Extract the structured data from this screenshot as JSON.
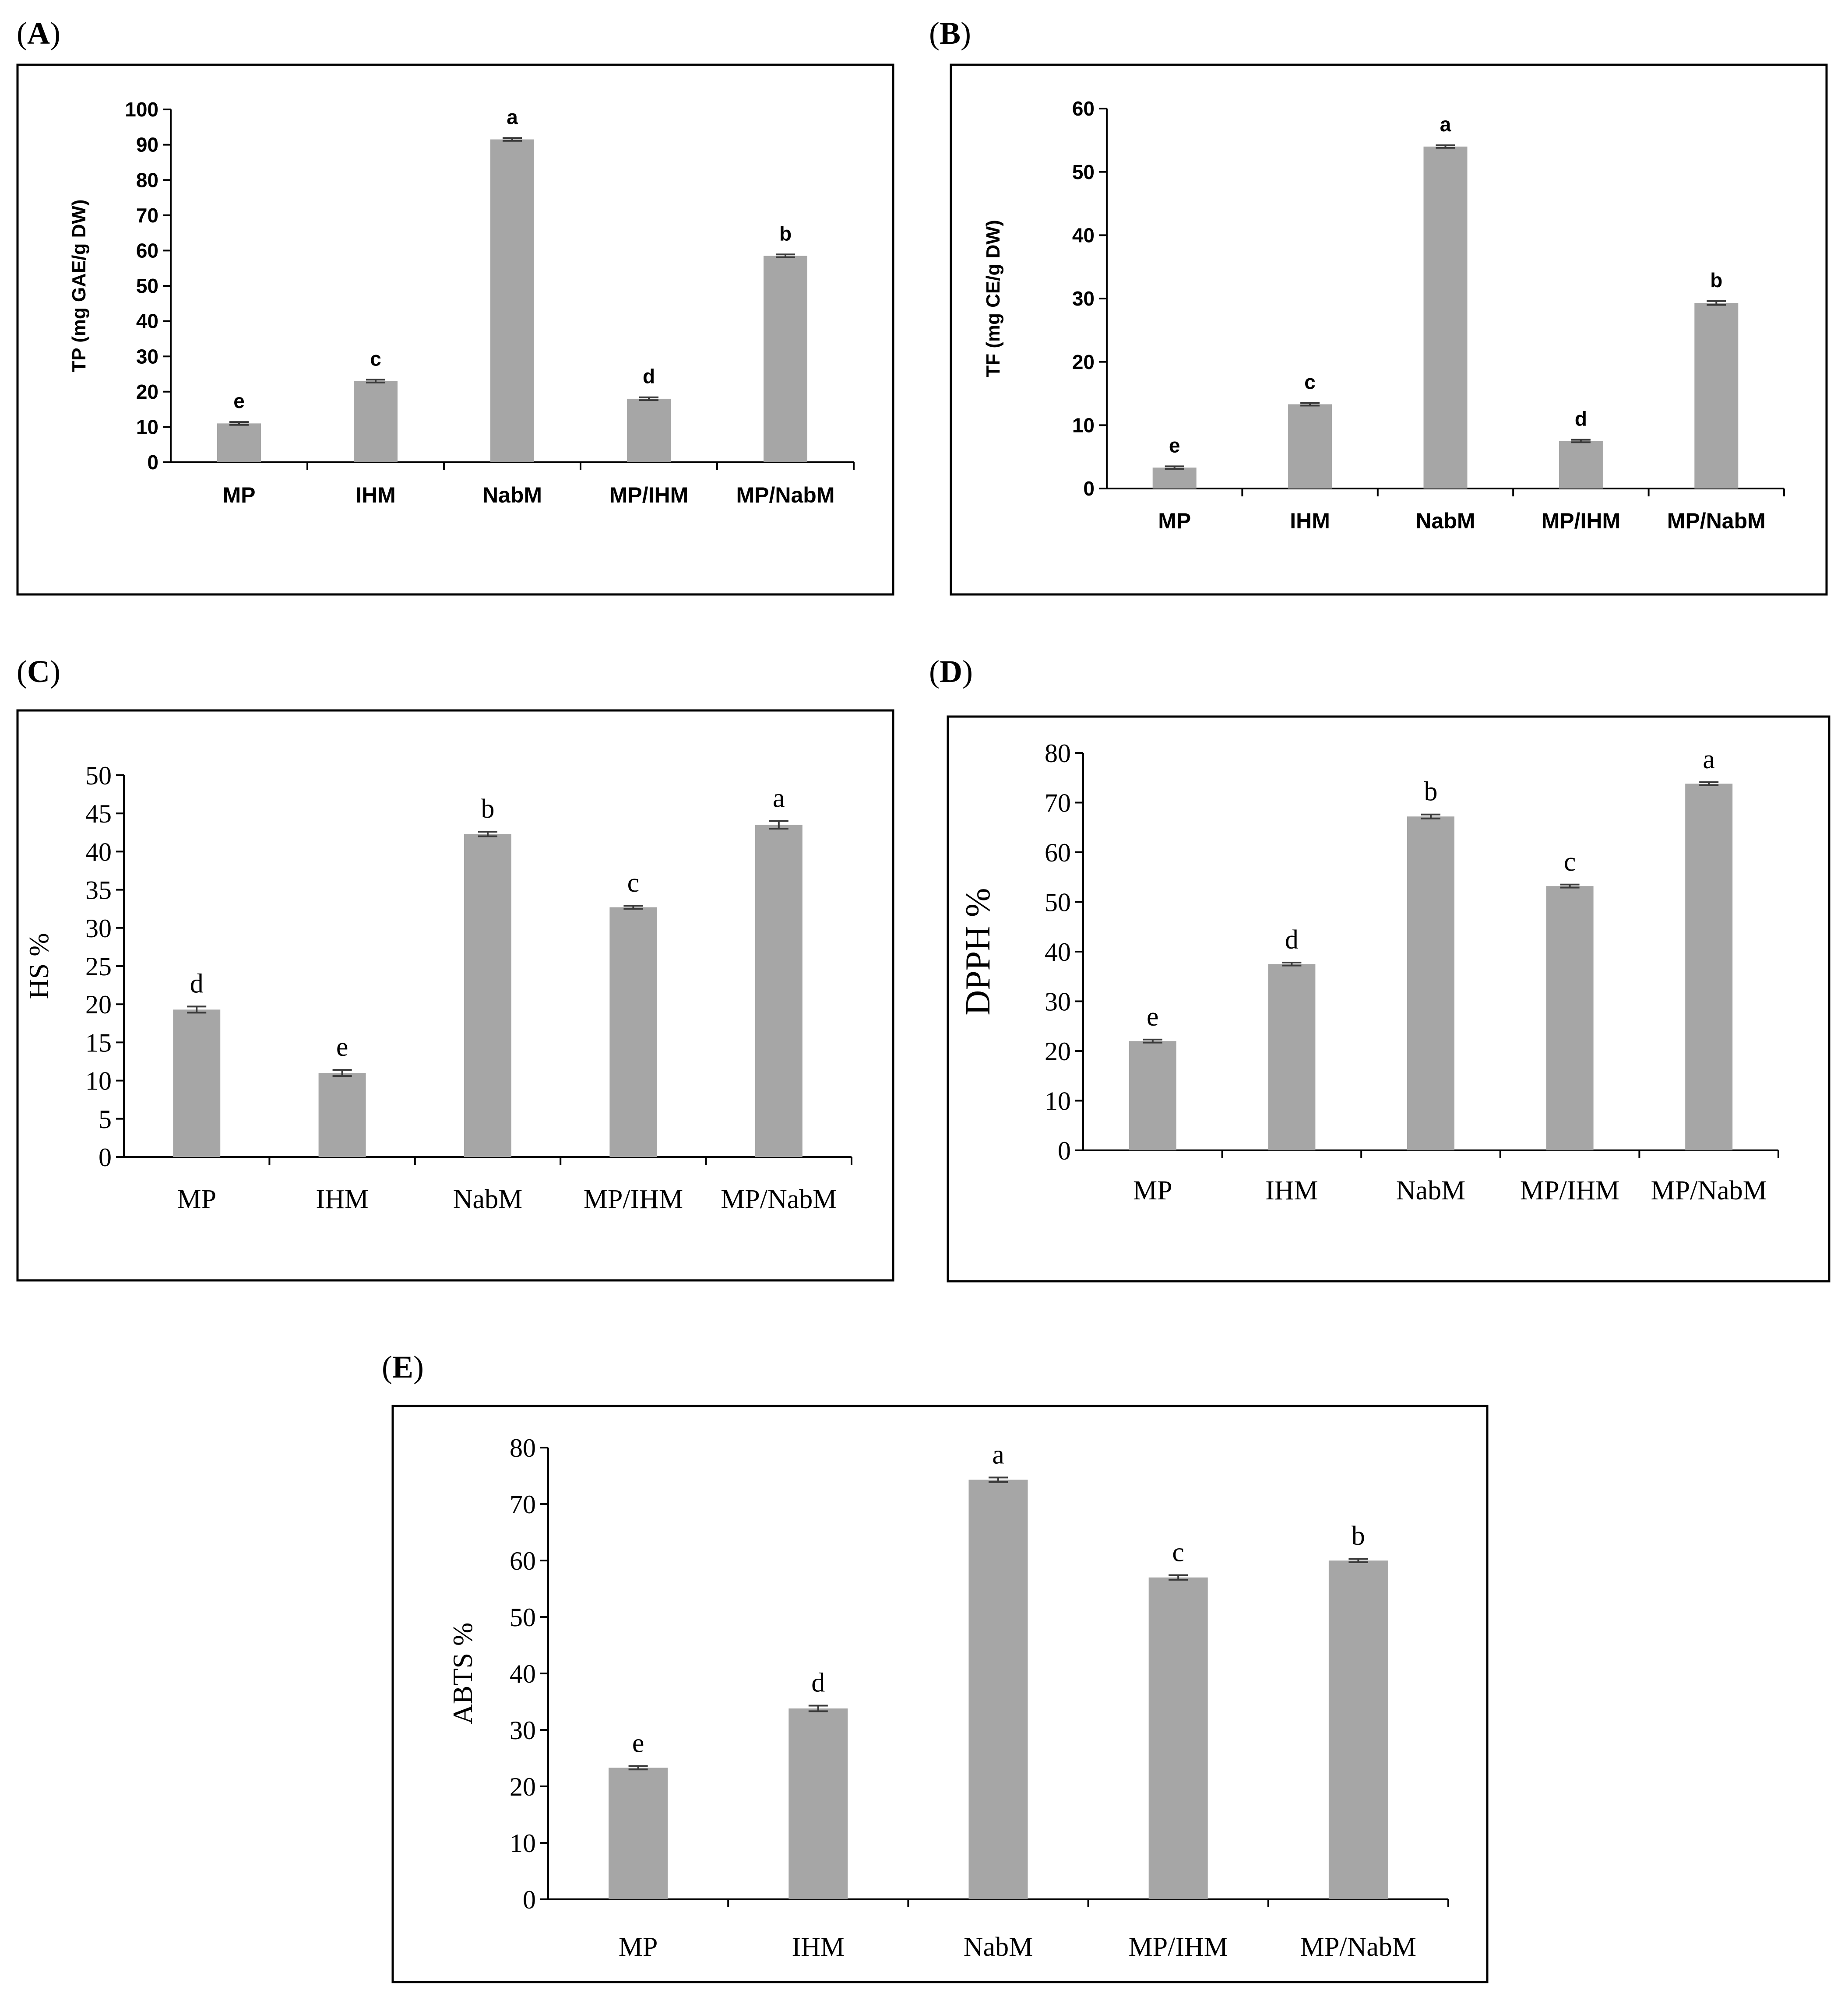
{
  "chart_data": [
    {
      "panel": "A",
      "panel_label": "(A)",
      "type": "bar",
      "ylabel": "TP (mg GAE/g DW)",
      "categories": [
        "MP",
        "IHM",
        "NabM",
        "MP/IHM",
        "MP/NabM"
      ],
      "values": [
        11,
        23,
        91.5,
        18,
        58.5
      ],
      "errors": [
        0.4,
        0.4,
        0.4,
        0.4,
        0.4
      ],
      "letters": [
        "e",
        "c",
        "a",
        "d",
        "b"
      ],
      "ylim": [
        0,
        100
      ],
      "yticks": [
        0,
        10,
        20,
        30,
        40,
        50,
        60,
        70,
        80,
        90,
        100
      ]
    },
    {
      "panel": "B",
      "panel_label": "(B)",
      "type": "bar",
      "ylabel": "TF (mg CE/g DW)",
      "categories": [
        "MP",
        "IHM",
        "NabM",
        "MP/IHM",
        "MP/NabM"
      ],
      "values": [
        3.3,
        13.3,
        54,
        7.5,
        29.3
      ],
      "errors": [
        0.2,
        0.2,
        0.2,
        0.2,
        0.3
      ],
      "letters": [
        "e",
        "c",
        "a",
        "d",
        "b"
      ],
      "ylim": [
        0,
        60
      ],
      "yticks": [
        0,
        10,
        20,
        30,
        40,
        50,
        60
      ]
    },
    {
      "panel": "C",
      "panel_label": "(C)",
      "type": "bar",
      "ylabel": "HS %",
      "categories": [
        "MP",
        "IHM",
        "NabM",
        "MP/IHM",
        "MP/NabM"
      ],
      "values": [
        19.3,
        11,
        42.3,
        32.7,
        43.5
      ],
      "errors": [
        0.4,
        0.4,
        0.3,
        0.2,
        0.5
      ],
      "letters": [
        "d",
        "e",
        "b",
        "c",
        "a"
      ],
      "ylim": [
        0,
        50
      ],
      "yticks": [
        0,
        5,
        10,
        15,
        20,
        25,
        30,
        35,
        40,
        45,
        50
      ]
    },
    {
      "panel": "D",
      "panel_label": "(D)",
      "type": "bar",
      "ylabel": "DPPH %",
      "categories": [
        "MP",
        "IHM",
        "NabM",
        "MP/IHM",
        "MP/NabM"
      ],
      "values": [
        22,
        37.5,
        67.2,
        53.2,
        73.8
      ],
      "errors": [
        0.3,
        0.3,
        0.4,
        0.3,
        0.3
      ],
      "letters": [
        "e",
        "d",
        "b",
        "c",
        "a"
      ],
      "ylim": [
        0,
        80
      ],
      "yticks": [
        0,
        10,
        20,
        30,
        40,
        50,
        60,
        70,
        80
      ]
    },
    {
      "panel": "E",
      "panel_label": "(E)",
      "type": "bar",
      "ylabel": "ABTS %",
      "categories": [
        "MP",
        "IHM",
        "NabM",
        "MP/IHM",
        "MP/NabM"
      ],
      "values": [
        23.3,
        33.8,
        74.3,
        57,
        60
      ],
      "errors": [
        0.3,
        0.5,
        0.4,
        0.4,
        0.3
      ],
      "letters": [
        "e",
        "d",
        "a",
        "c",
        "b"
      ],
      "ylim": [
        0,
        80
      ],
      "yticks": [
        0,
        10,
        20,
        30,
        40,
        50,
        60,
        70,
        80
      ]
    }
  ]
}
